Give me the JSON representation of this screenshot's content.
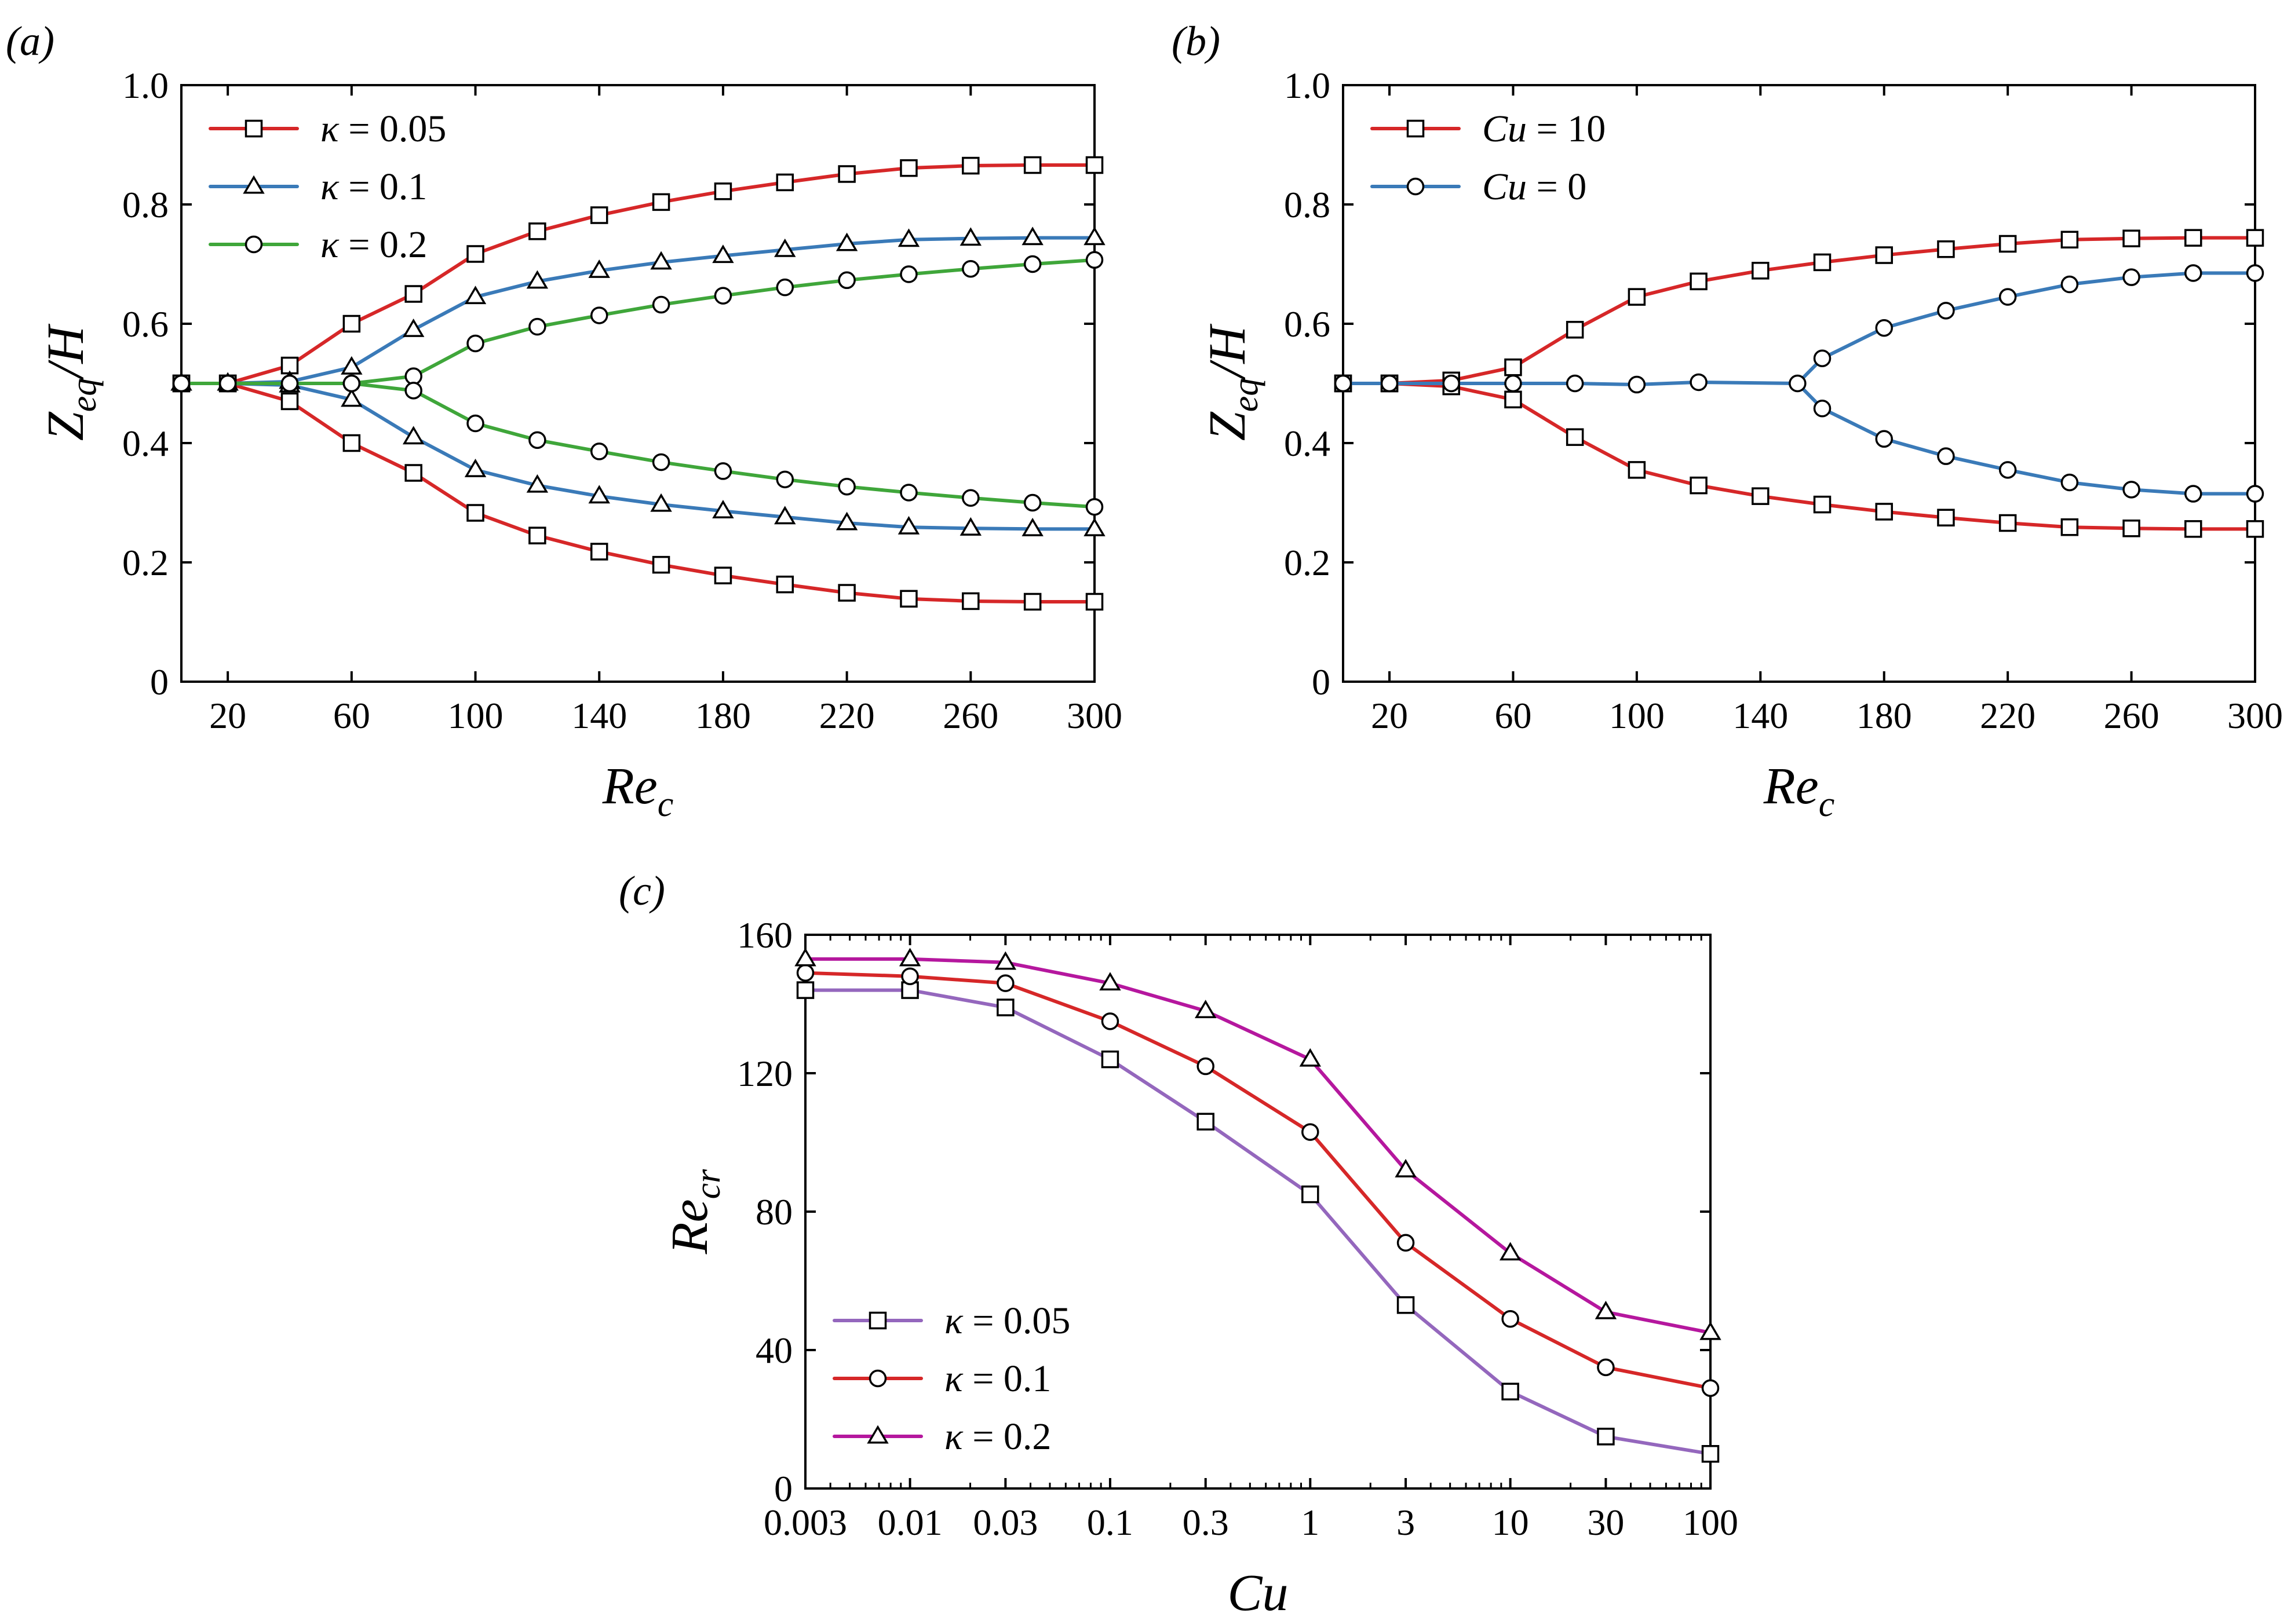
{
  "chart_data": [
    {
      "panel": "(a)",
      "type": "line",
      "xlabel": {
        "main": "Re",
        "sub": "c"
      },
      "ylabel": {
        "main": "Z",
        "sub": "eq",
        "tail": "/H"
      },
      "xlim": [
        5,
        300
      ],
      "ylim": [
        0,
        1.0
      ],
      "x_ticks": [
        20,
        60,
        100,
        140,
        180,
        220,
        260,
        300
      ],
      "y_ticks": [
        0,
        0.2,
        0.4,
        0.6,
        0.8,
        1.0
      ],
      "y_tick_labels": [
        "0",
        "0.2",
        "0.4",
        "0.6",
        "0.8",
        "1.0"
      ],
      "legend_position": "top-left",
      "grid": false,
      "series": [
        {
          "name": "κ = 0.05",
          "color": "#d62728",
          "marker": "square",
          "x": [
            5,
            20,
            40,
            60,
            80,
            100,
            120,
            140,
            160,
            180,
            200,
            220,
            240,
            260,
            280,
            300
          ],
          "upper": [
            0.5,
            0.5,
            0.53,
            0.6,
            0.65,
            0.717,
            0.755,
            0.782,
            0.804,
            0.822,
            0.837,
            0.851,
            0.861,
            0.865,
            0.866,
            0.866
          ],
          "lower": [
            0.5,
            0.5,
            0.47,
            0.4,
            0.35,
            0.283,
            0.245,
            0.218,
            0.196,
            0.178,
            0.163,
            0.149,
            0.139,
            0.135,
            0.134,
            0.134
          ]
        },
        {
          "name": "κ = 0.1",
          "color": "#3a7ab8",
          "marker": "triangle",
          "x": [
            5,
            20,
            40,
            60,
            80,
            100,
            120,
            140,
            160,
            180,
            200,
            220,
            240,
            260,
            280,
            300
          ],
          "upper": [
            0.5,
            0.5,
            0.503,
            0.527,
            0.59,
            0.645,
            0.671,
            0.689,
            0.703,
            0.714,
            0.724,
            0.734,
            0.741,
            0.743,
            0.744,
            0.744
          ],
          "lower": [
            0.5,
            0.5,
            0.497,
            0.473,
            0.41,
            0.355,
            0.329,
            0.311,
            0.297,
            0.286,
            0.276,
            0.266,
            0.259,
            0.257,
            0.256,
            0.256
          ]
        },
        {
          "name": "κ = 0.2",
          "color": "#3fa63a",
          "marker": "circle",
          "x": [
            5,
            20,
            40,
            60,
            80,
            100,
            120,
            140,
            160,
            180,
            200,
            220,
            240,
            260,
            280,
            300
          ],
          "upper": [
            0.5,
            0.5,
            0.5,
            0.5,
            0.512,
            0.567,
            0.595,
            0.614,
            0.632,
            0.647,
            0.661,
            0.673,
            0.683,
            0.692,
            0.7,
            0.707
          ],
          "lower": [
            0.5,
            0.5,
            0.5,
            0.5,
            0.488,
            0.433,
            0.405,
            0.386,
            0.368,
            0.353,
            0.339,
            0.327,
            0.317,
            0.308,
            0.3,
            0.293
          ]
        }
      ]
    },
    {
      "panel": "(b)",
      "type": "line",
      "xlabel": {
        "main": "Re",
        "sub": "c"
      },
      "ylabel": {
        "main": "Z",
        "sub": "eq",
        "tail": "/H"
      },
      "xlim": [
        5,
        300
      ],
      "ylim": [
        0,
        1.0
      ],
      "x_ticks": [
        20,
        60,
        100,
        140,
        180,
        220,
        260,
        300
      ],
      "y_ticks": [
        0,
        0.2,
        0.4,
        0.6,
        0.8,
        1.0
      ],
      "y_tick_labels": [
        "0",
        "0.2",
        "0.4",
        "0.6",
        "0.8",
        "1.0"
      ],
      "legend_position": "top-left",
      "grid": false,
      "series": [
        {
          "name": "Cu = 10",
          "color": "#d62728",
          "marker": "square",
          "x": [
            5,
            20,
            40,
            60,
            80,
            100,
            120,
            140,
            160,
            180,
            200,
            220,
            240,
            260,
            280,
            300
          ],
          "upper": [
            0.5,
            0.5,
            0.505,
            0.527,
            0.59,
            0.645,
            0.671,
            0.689,
            0.703,
            0.715,
            0.725,
            0.734,
            0.741,
            0.743,
            0.744,
            0.744
          ],
          "lower": [
            0.5,
            0.5,
            0.495,
            0.473,
            0.41,
            0.355,
            0.329,
            0.311,
            0.297,
            0.285,
            0.275,
            0.266,
            0.259,
            0.257,
            0.256,
            0.256
          ]
        },
        {
          "name": "Cu = 0",
          "color": "#3a7ab8",
          "marker": "circle",
          "x_common": [
            5,
            20,
            40,
            60,
            80,
            100,
            120,
            152
          ],
          "y_common": [
            0.5,
            0.5,
            0.5,
            0.5,
            0.5,
            0.498,
            0.502,
            0.5
          ],
          "x_branch": [
            152,
            160,
            180,
            200,
            220,
            240,
            260,
            280,
            300
          ],
          "upper": [
            0.5,
            0.542,
            0.593,
            0.622,
            0.645,
            0.666,
            0.678,
            0.685,
            0.685
          ],
          "lower": [
            0.5,
            0.458,
            0.407,
            0.378,
            0.355,
            0.334,
            0.322,
            0.315,
            0.315
          ]
        }
      ]
    },
    {
      "panel": "(c)",
      "type": "line",
      "xscale": "log",
      "xlabel": {
        "main": "Cu"
      },
      "ylabel": {
        "main": "Re",
        "sub": "cr"
      },
      "xlim": [
        0.003,
        100
      ],
      "ylim": [
        0,
        160
      ],
      "x_ticks": [
        0.003,
        0.01,
        0.03,
        0.1,
        0.3,
        1,
        3,
        10,
        30,
        100
      ],
      "x_tick_labels": [
        "0.003",
        "0.01",
        "0.03",
        "0.1",
        "0.3",
        "1",
        "3",
        "10",
        "30",
        "100"
      ],
      "y_ticks": [
        0,
        40,
        80,
        120,
        160
      ],
      "y_tick_labels": [
        "0",
        "40",
        "80",
        "120",
        "160"
      ],
      "legend_position": "bottom-left",
      "grid": false,
      "series": [
        {
          "name": "κ = 0.05",
          "color": "#9467bd",
          "marker": "square",
          "x": [
            0.003,
            0.01,
            0.03,
            0.1,
            0.3,
            1,
            3,
            10,
            30,
            100
          ],
          "values": [
            144,
            144,
            139,
            124,
            106,
            85,
            53,
            28,
            15,
            10
          ]
        },
        {
          "name": "κ = 0.1",
          "color": "#d62728",
          "marker": "circle",
          "x": [
            0.003,
            0.01,
            0.03,
            0.1,
            0.3,
            1,
            3,
            10,
            30,
            100
          ],
          "values": [
            149,
            148,
            146,
            135,
            122,
            103,
            71,
            49,
            35,
            29
          ]
        },
        {
          "name": "κ = 0.2",
          "color": "#b5179e",
          "marker": "triangle",
          "x": [
            0.003,
            0.01,
            0.03,
            0.1,
            0.3,
            1,
            3,
            10,
            30,
            100
          ],
          "values": [
            153,
            153,
            152,
            146,
            138,
            124,
            92,
            68,
            51,
            45
          ]
        }
      ]
    }
  ]
}
